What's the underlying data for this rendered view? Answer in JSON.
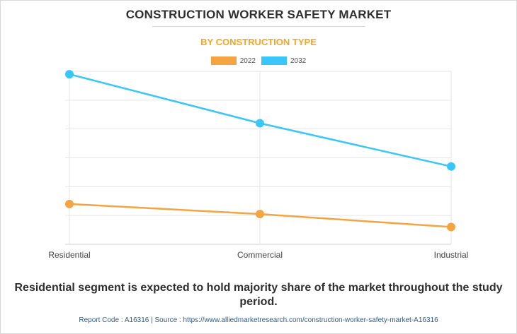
{
  "header": {
    "title": "CONSTRUCTION WORKER SAFETY MARKET",
    "subtitle": "BY CONSTRUCTION TYPE"
  },
  "colors": {
    "series_2022": "#f5a442",
    "series_2032": "#38c6fb",
    "subtitle": "#f5a623",
    "grid": "#e6e6e6"
  },
  "chart_data": {
    "type": "line",
    "title": "BY CONSTRUCTION TYPE",
    "categories": [
      "Residential",
      "Commercial",
      "Industrial"
    ],
    "series": [
      {
        "name": "2022",
        "values": [
          14,
          10.5,
          6
        ]
      },
      {
        "name": "2032",
        "values": [
          59,
          42,
          27
        ]
      }
    ],
    "ylim": [
      0,
      60
    ],
    "y_ticks": [
      0,
      10,
      20,
      30,
      40,
      50,
      60
    ],
    "grid": true,
    "y_tick_labels_visible": false,
    "legend": "top-center"
  },
  "caption": "Residential segment is expected to hold majority share of the market throughout the study period.",
  "footer": "Report Code : A16316  |  Source : https://www.alliedmarketresearch.com/construction-worker-safety-market-A16316"
}
